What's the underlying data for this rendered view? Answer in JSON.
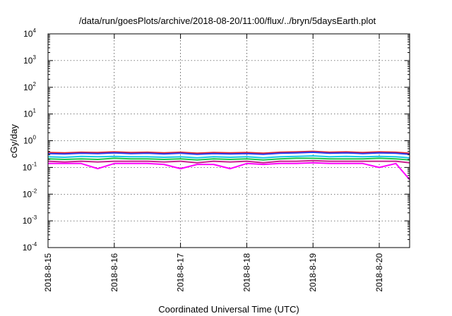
{
  "chart_data": {
    "type": "line",
    "title": "/data/run/goesPlots/archive/2018-08-20/11:00/flux/../bryn/5daysEarth.plot",
    "xlabel": "Coordinated Universal Time (UTC)",
    "ylabel": "cGy/day",
    "yscale": "log",
    "ylim": [
      0.0001,
      10000
    ],
    "y_ticks": [
      {
        "base": "10",
        "exp": "-4",
        "value": 0.0001
      },
      {
        "base": "10",
        "exp": "-3",
        "value": 0.001
      },
      {
        "base": "10",
        "exp": "-2",
        "value": 0.01
      },
      {
        "base": "10",
        "exp": "-1",
        "value": 0.1
      },
      {
        "base": "10",
        "exp": "0",
        "value": 1
      },
      {
        "base": "10",
        "exp": "1",
        "value": 10
      },
      {
        "base": "10",
        "exp": "2",
        "value": 100
      },
      {
        "base": "10",
        "exp": "3",
        "value": 1000
      },
      {
        "base": "10",
        "exp": "4",
        "value": 10000
      }
    ],
    "xlim": [
      "2018-08-15T00:00",
      "2018-08-20T11:00"
    ],
    "x_ticks": [
      {
        "label": "2018-8-15",
        "value": "2018-08-15T00:00"
      },
      {
        "label": "2018-8-16",
        "value": "2018-08-16T00:00"
      },
      {
        "label": "2018-8-17",
        "value": "2018-08-17T00:00"
      },
      {
        "label": "2018-8-18",
        "value": "2018-08-18T00:00"
      },
      {
        "label": "2018-8-19",
        "value": "2018-08-19T00:00"
      },
      {
        "label": "2018-8-20",
        "value": "2018-08-20T00:00"
      }
    ],
    "grid": true,
    "x": [
      "2018-08-15T00:00",
      "2018-08-15T06:00",
      "2018-08-15T12:00",
      "2018-08-15T18:00",
      "2018-08-16T00:00",
      "2018-08-16T06:00",
      "2018-08-16T12:00",
      "2018-08-16T18:00",
      "2018-08-17T00:00",
      "2018-08-17T06:00",
      "2018-08-17T12:00",
      "2018-08-17T18:00",
      "2018-08-18T00:00",
      "2018-08-18T06:00",
      "2018-08-18T12:00",
      "2018-08-18T18:00",
      "2018-08-19T00:00",
      "2018-08-19T06:00",
      "2018-08-19T12:00",
      "2018-08-19T18:00",
      "2018-08-20T00:00",
      "2018-08-20T06:00",
      "2018-08-20T11:00"
    ],
    "series": [
      {
        "color": "#e8212a",
        "values": [
          0.36,
          0.35,
          0.37,
          0.36,
          0.38,
          0.36,
          0.37,
          0.35,
          0.37,
          0.34,
          0.36,
          0.35,
          0.36,
          0.34,
          0.37,
          0.38,
          0.4,
          0.37,
          0.38,
          0.36,
          0.38,
          0.37,
          0.34
        ]
      },
      {
        "color": "#2a3cf0",
        "values": [
          0.33,
          0.32,
          0.34,
          0.33,
          0.35,
          0.33,
          0.34,
          0.32,
          0.34,
          0.31,
          0.33,
          0.32,
          0.33,
          0.31,
          0.34,
          0.35,
          0.37,
          0.34,
          0.35,
          0.33,
          0.35,
          0.34,
          0.31
        ]
      },
      {
        "color": "#16c7e8",
        "values": [
          0.25,
          0.24,
          0.26,
          0.25,
          0.26,
          0.25,
          0.25,
          0.24,
          0.25,
          0.23,
          0.25,
          0.24,
          0.25,
          0.23,
          0.25,
          0.26,
          0.27,
          0.25,
          0.26,
          0.25,
          0.26,
          0.25,
          0.23
        ]
      },
      {
        "color": "#1ec44a",
        "values": [
          0.21,
          0.2,
          0.21,
          0.2,
          0.22,
          0.21,
          0.21,
          0.2,
          0.21,
          0.19,
          0.21,
          0.2,
          0.21,
          0.19,
          0.21,
          0.22,
          0.22,
          0.21,
          0.21,
          0.21,
          0.22,
          0.21,
          0.19
        ]
      },
      {
        "color": "#c81e8c",
        "values": [
          0.17,
          0.16,
          0.17,
          0.16,
          0.17,
          0.17,
          0.17,
          0.16,
          0.17,
          0.15,
          0.17,
          0.16,
          0.17,
          0.15,
          0.17,
          0.17,
          0.18,
          0.17,
          0.17,
          0.17,
          0.17,
          0.17,
          0.15
        ]
      },
      {
        "color": "#ff00ff",
        "values": [
          0.14,
          0.14,
          0.14,
          0.09,
          0.14,
          0.14,
          0.14,
          0.13,
          0.09,
          0.13,
          0.13,
          0.09,
          0.14,
          0.13,
          0.14,
          0.14,
          0.15,
          0.14,
          0.14,
          0.14,
          0.1,
          0.14,
          0.035
        ]
      }
    ]
  }
}
